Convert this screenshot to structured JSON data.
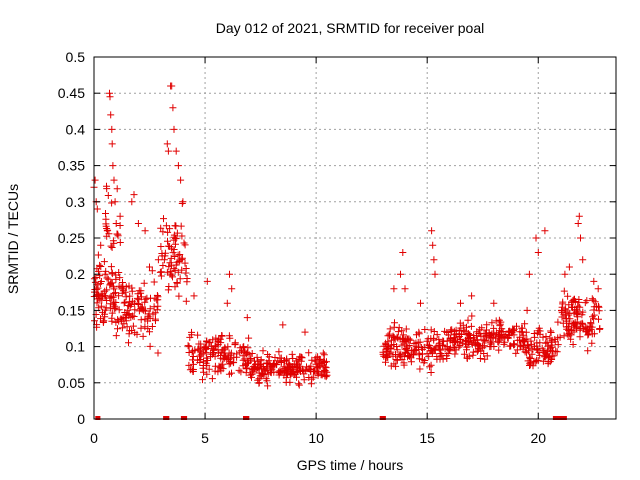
{
  "chart_data": {
    "type": "scatter",
    "title": "Day 012 of 2021, SRMTID for receiver poal",
    "xlabel": "GPS time / hours",
    "ylabel": "SRMTID / TECUs",
    "xlim": [
      0,
      23.5
    ],
    "ylim": [
      0,
      0.5
    ],
    "xticks": [
      0,
      5,
      10,
      15,
      20
    ],
    "yticks": [
      0,
      0.05,
      0.1,
      0.15,
      0.2,
      0.25,
      0.3,
      0.35,
      0.4,
      0.45,
      0.5
    ],
    "grid": true,
    "marker": "plus",
    "color": "#e00000",
    "series": [
      {
        "name": "SRMTID",
        "segments": [
          {
            "x_start": 0.0,
            "x_end": 1.0,
            "center": 0.17,
            "spread": 0.07,
            "points": 80
          },
          {
            "x_start": 0.5,
            "x_end": 1.2,
            "center": 0.26,
            "spread": 0.08,
            "points": 25
          },
          {
            "x_start": 1.0,
            "x_end": 3.0,
            "center": 0.15,
            "spread": 0.07,
            "points": 110
          },
          {
            "x_start": 3.0,
            "x_end": 4.2,
            "center": 0.22,
            "spread": 0.1,
            "points": 70
          },
          {
            "x_start": 4.2,
            "x_end": 7.0,
            "center": 0.09,
            "spread": 0.04,
            "points": 150
          },
          {
            "x_start": 7.0,
            "x_end": 10.5,
            "center": 0.07,
            "spread": 0.03,
            "points": 200
          },
          {
            "x_start": 13.0,
            "x_end": 16.0,
            "center": 0.1,
            "spread": 0.04,
            "points": 170
          },
          {
            "x_start": 16.0,
            "x_end": 19.5,
            "center": 0.11,
            "spread": 0.035,
            "points": 200
          },
          {
            "x_start": 19.5,
            "x_end": 21.0,
            "center": 0.1,
            "spread": 0.04,
            "points": 80
          },
          {
            "x_start": 21.0,
            "x_end": 22.8,
            "center": 0.14,
            "spread": 0.05,
            "points": 110
          }
        ],
        "peaks": [
          {
            "x": 0.0,
            "y": 0.32
          },
          {
            "x": 0.05,
            "y": 0.33
          },
          {
            "x": 0.1,
            "y": 0.3
          },
          {
            "x": 0.15,
            "y": 0.29
          },
          {
            "x": 0.3,
            "y": 0.24
          },
          {
            "x": 0.5,
            "y": 0.2
          },
          {
            "x": 0.6,
            "y": 0.26
          },
          {
            "x": 0.7,
            "y": 0.45
          },
          {
            "x": 0.72,
            "y": 0.445
          },
          {
            "x": 0.75,
            "y": 0.42
          },
          {
            "x": 0.8,
            "y": 0.4
          },
          {
            "x": 0.82,
            "y": 0.38
          },
          {
            "x": 0.85,
            "y": 0.35
          },
          {
            "x": 0.9,
            "y": 0.33
          },
          {
            "x": 0.95,
            "y": 0.3
          },
          {
            "x": 1.0,
            "y": 0.27
          },
          {
            "x": 1.7,
            "y": 0.3
          },
          {
            "x": 1.8,
            "y": 0.31
          },
          {
            "x": 2.0,
            "y": 0.27
          },
          {
            "x": 2.3,
            "y": 0.26
          },
          {
            "x": 2.5,
            "y": 0.21
          },
          {
            "x": 2.9,
            "y": 0.22
          },
          {
            "x": 3.3,
            "y": 0.38
          },
          {
            "x": 3.35,
            "y": 0.37
          },
          {
            "x": 3.45,
            "y": 0.46
          },
          {
            "x": 3.5,
            "y": 0.46
          },
          {
            "x": 3.55,
            "y": 0.43
          },
          {
            "x": 3.6,
            "y": 0.4
          },
          {
            "x": 3.7,
            "y": 0.37
          },
          {
            "x": 3.8,
            "y": 0.35
          },
          {
            "x": 3.9,
            "y": 0.33
          },
          {
            "x": 4.0,
            "y": 0.3
          },
          {
            "x": 4.5,
            "y": 0.17
          },
          {
            "x": 5.1,
            "y": 0.19
          },
          {
            "x": 6.0,
            "y": 0.16
          },
          {
            "x": 6.2,
            "y": 0.18
          },
          {
            "x": 6.1,
            "y": 0.2
          },
          {
            "x": 6.9,
            "y": 0.14
          },
          {
            "x": 8.5,
            "y": 0.13
          },
          {
            "x": 9.5,
            "y": 0.12
          },
          {
            "x": 13.5,
            "y": 0.18
          },
          {
            "x": 13.8,
            "y": 0.2
          },
          {
            "x": 13.9,
            "y": 0.23
          },
          {
            "x": 14.0,
            "y": 0.18
          },
          {
            "x": 14.7,
            "y": 0.16
          },
          {
            "x": 15.2,
            "y": 0.26
          },
          {
            "x": 15.25,
            "y": 0.24
          },
          {
            "x": 15.3,
            "y": 0.22
          },
          {
            "x": 15.35,
            "y": 0.2
          },
          {
            "x": 16.5,
            "y": 0.16
          },
          {
            "x": 17.0,
            "y": 0.17
          },
          {
            "x": 18.0,
            "y": 0.16
          },
          {
            "x": 19.5,
            "y": 0.15
          },
          {
            "x": 19.6,
            "y": 0.2
          },
          {
            "x": 19.9,
            "y": 0.25
          },
          {
            "x": 20.0,
            "y": 0.23
          },
          {
            "x": 20.3,
            "y": 0.26
          },
          {
            "x": 21.2,
            "y": 0.2
          },
          {
            "x": 21.4,
            "y": 0.21
          },
          {
            "x": 21.8,
            "y": 0.27
          },
          {
            "x": 21.85,
            "y": 0.28
          },
          {
            "x": 21.9,
            "y": 0.25
          },
          {
            "x": 22.0,
            "y": 0.22
          },
          {
            "x": 22.5,
            "y": 0.19
          },
          {
            "x": 22.7,
            "y": 0.18
          }
        ],
        "zeros": [
          0.15,
          0.2,
          3.2,
          3.3,
          4.0,
          4.1,
          6.8,
          6.9,
          12.95,
          13.05,
          20.75,
          20.85,
          20.9,
          21.0,
          21.1,
          21.2
        ]
      }
    ]
  }
}
